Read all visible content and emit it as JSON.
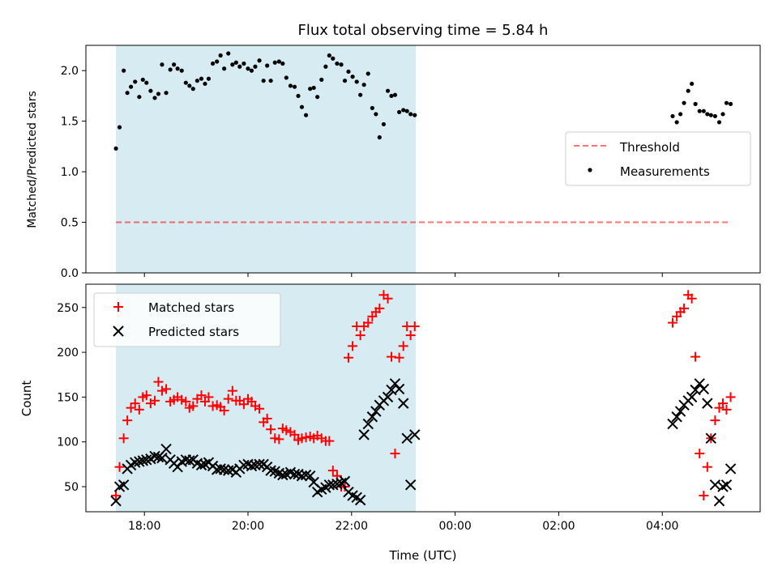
{
  "chart_data": [
    {
      "type": "scatter",
      "title": "Flux total observing time = 5.84 h",
      "xlabel": "",
      "ylabel": "Matched/Predicted stars",
      "xlim": [
        16.87,
        29.89
      ],
      "ylim": [
        0,
        2.25
      ],
      "yticks": [
        0.0,
        0.5,
        1.0,
        1.5,
        2.0
      ],
      "ytick_labels": [
        "0.0",
        "0.5",
        "1.0",
        "1.5",
        "2.0"
      ],
      "xticks": [
        18,
        20,
        22,
        24,
        26,
        28
      ],
      "shaded_span": [
        17.45,
        23.24
      ],
      "threshold": {
        "name": "Threshold",
        "value": 0.5,
        "x_range": [
          17.45,
          29.3
        ]
      },
      "legend": {
        "location": "center-right",
        "entries": [
          "Threshold",
          "Measurements"
        ]
      },
      "series": [
        {
          "name": "Measurements",
          "x": [
            17.45,
            17.52,
            17.6,
            17.67,
            17.74,
            17.82,
            17.9,
            17.97,
            18.04,
            18.12,
            18.2,
            18.27,
            18.34,
            18.42,
            18.5,
            18.57,
            18.64,
            18.72,
            18.8,
            18.87,
            18.94,
            19.02,
            19.1,
            19.17,
            19.24,
            19.32,
            19.4,
            19.47,
            19.54,
            19.62,
            19.7,
            19.77,
            19.84,
            19.92,
            20.0,
            20.07,
            20.14,
            20.22,
            20.3,
            20.37,
            20.44,
            20.52,
            20.6,
            20.67,
            20.74,
            20.82,
            20.9,
            20.97,
            21.04,
            21.12,
            21.2,
            21.27,
            21.34,
            21.42,
            21.5,
            21.57,
            21.64,
            21.72,
            21.8,
            21.87,
            21.94,
            22.02,
            22.1,
            22.17,
            22.24,
            22.32,
            22.4,
            22.47,
            22.54,
            22.62,
            22.7,
            22.77,
            22.84,
            22.92,
            23.0,
            23.07,
            23.14,
            23.22,
            28.2,
            28.28,
            28.35,
            28.42,
            28.5,
            28.57,
            28.64,
            28.72,
            28.8,
            28.87,
            28.94,
            29.02,
            29.1,
            29.17,
            29.24,
            29.32
          ],
          "y": [
            1.23,
            1.44,
            2.0,
            1.78,
            1.84,
            1.89,
            1.74,
            1.91,
            1.88,
            1.8,
            1.73,
            1.77,
            2.06,
            1.78,
            2.01,
            2.06,
            2.02,
            2.0,
            1.88,
            1.85,
            1.82,
            1.9,
            1.92,
            1.87,
            1.92,
            2.07,
            2.09,
            2.15,
            2.02,
            2.17,
            2.06,
            2.08,
            2.04,
            2.07,
            2.02,
            2.0,
            2.04,
            2.1,
            1.9,
            2.05,
            1.9,
            2.08,
            2.09,
            2.07,
            1.93,
            1.85,
            1.84,
            1.75,
            1.64,
            1.56,
            1.82,
            1.83,
            1.74,
            1.91,
            2.04,
            2.15,
            2.12,
            2.07,
            2.06,
            1.9,
            1.99,
            1.94,
            1.89,
            1.76,
            1.86,
            1.97,
            1.63,
            1.57,
            1.34,
            1.47,
            1.8,
            1.75,
            1.76,
            1.59,
            1.61,
            1.6,
            1.57,
            1.56,
            1.55,
            1.49,
            1.57,
            1.68,
            1.8,
            1.87,
            1.67,
            1.6,
            1.6,
            1.57,
            1.56,
            1.55,
            1.49,
            1.57,
            1.68,
            1.67
          ]
        }
      ]
    },
    {
      "type": "scatter",
      "title": "",
      "xlabel": "Time (UTC)",
      "ylabel": "Count",
      "xlim": [
        16.87,
        29.89
      ],
      "ylim": [
        22,
        276
      ],
      "yticks": [
        50,
        100,
        150,
        200,
        250
      ],
      "ytick_labels": [
        "50",
        "100",
        "150",
        "200",
        "250"
      ],
      "xticks": [
        18,
        20,
        22,
        24,
        26,
        28
      ],
      "xtick_labels": [
        "18:00",
        "20:00",
        "22:00",
        "00:00",
        "02:00",
        "04:00"
      ],
      "shaded_span": [
        17.45,
        23.24
      ],
      "legend": {
        "location": "top-left",
        "entries": [
          "Matched stars",
          "Predicted stars"
        ]
      },
      "series": [
        {
          "name": "Matched stars",
          "marker": "plus",
          "color": "#ff0000",
          "x": [
            17.45,
            17.52,
            17.6,
            17.67,
            17.74,
            17.82,
            17.9,
            17.97,
            18.04,
            18.12,
            18.2,
            18.27,
            18.34,
            18.42,
            18.5,
            18.57,
            18.64,
            18.72,
            18.8,
            18.87,
            18.94,
            19.02,
            19.1,
            19.17,
            19.24,
            19.32,
            19.4,
            19.47,
            19.54,
            19.62,
            19.7,
            19.77,
            19.84,
            19.92,
            20.0,
            20.07,
            20.14,
            20.22,
            20.3,
            20.37,
            20.44,
            20.52,
            20.6,
            20.67,
            20.74,
            20.82,
            20.9,
            20.97,
            21.04,
            21.12,
            21.2,
            21.27,
            21.34,
            21.42,
            21.5,
            21.57,
            21.64,
            21.72,
            21.8,
            21.87,
            21.94,
            22.02,
            22.1,
            22.17,
            22.24,
            22.32,
            22.4,
            22.47,
            22.54,
            22.62,
            22.7,
            22.77,
            22.84,
            22.92,
            23.0,
            23.07,
            23.14,
            23.22,
            28.2,
            28.28,
            28.35,
            28.42,
            28.5,
            28.57,
            28.64,
            28.72,
            28.8,
            28.87,
            28.94,
            29.02,
            29.1,
            29.17,
            29.24,
            29.32
          ],
          "y": [
            40,
            72,
            104,
            124,
            138,
            143,
            136,
            150,
            152,
            143,
            146,
            167,
            157,
            159,
            145,
            147,
            150,
            147,
            145,
            138,
            140,
            148,
            152,
            145,
            150,
            140,
            141,
            139,
            135,
            148,
            157,
            146,
            146,
            142,
            148,
            145,
            140,
            137,
            122,
            126,
            114,
            104,
            103,
            115,
            113,
            111,
            108,
            102,
            104,
            105,
            106,
            104,
            107,
            104,
            101,
            101,
            68,
            62,
            50,
            50,
            194,
            207,
            229,
            219,
            229,
            233,
            240,
            245,
            249,
            264,
            260,
            195,
            87,
            194,
            207,
            229,
            219,
            229,
            233,
            240,
            245,
            249,
            264,
            260,
            195,
            87,
            40,
            72,
            104,
            124,
            138,
            143,
            136,
            150
          ],
          "y_note": "values approximated from the plot"
        },
        {
          "name": "Predicted stars",
          "marker": "x",
          "color": "#000000",
          "x": [
            17.45,
            17.52,
            17.6,
            17.67,
            17.74,
            17.82,
            17.9,
            17.97,
            18.04,
            18.12,
            18.2,
            18.27,
            18.34,
            18.42,
            18.5,
            18.57,
            18.64,
            18.72,
            18.8,
            18.87,
            18.94,
            19.02,
            19.1,
            19.17,
            19.24,
            19.32,
            19.4,
            19.47,
            19.54,
            19.62,
            19.7,
            19.77,
            19.84,
            19.92,
            20.0,
            20.07,
            20.14,
            20.22,
            20.3,
            20.37,
            20.44,
            20.52,
            20.6,
            20.67,
            20.74,
            20.82,
            20.9,
            20.97,
            21.04,
            21.12,
            21.2,
            21.27,
            21.34,
            21.42,
            21.5,
            21.57,
            21.64,
            21.72,
            21.8,
            21.87,
            21.94,
            22.02,
            22.1,
            22.17,
            22.24,
            22.32,
            22.4,
            22.47,
            22.54,
            22.62,
            22.7,
            22.77,
            22.84,
            22.92,
            23.0,
            23.07,
            23.14,
            23.22,
            28.2,
            28.28,
            28.35,
            28.42,
            28.5,
            28.57,
            28.64,
            28.72,
            28.8,
            28.87,
            28.94,
            29.02,
            29.1,
            29.17,
            29.24,
            29.32
          ],
          "y": [
            34,
            50,
            52,
            70,
            74,
            77,
            78,
            79,
            80,
            81,
            84,
            83,
            82,
            92,
            80,
            76,
            72,
            78,
            80,
            79,
            80,
            76,
            74,
            75,
            77,
            73,
            69,
            70,
            69,
            68,
            69,
            66,
            70,
            74,
            75,
            73,
            74,
            75,
            75,
            72,
            68,
            67,
            65,
            63,
            64,
            66,
            64,
            64,
            62,
            63,
            62,
            55,
            44,
            47,
            49,
            52,
            52,
            53,
            54,
            56,
            44,
            40,
            38,
            35,
            108,
            120,
            128,
            134,
            141,
            146,
            150,
            158,
            165,
            159,
            143,
            104,
            52,
            108,
            120,
            128,
            134,
            141,
            146,
            150,
            158,
            165,
            159,
            143,
            104,
            52,
            34,
            50,
            52,
            70
          ],
          "y_note": "values approximated from the plot"
        }
      ]
    }
  ]
}
